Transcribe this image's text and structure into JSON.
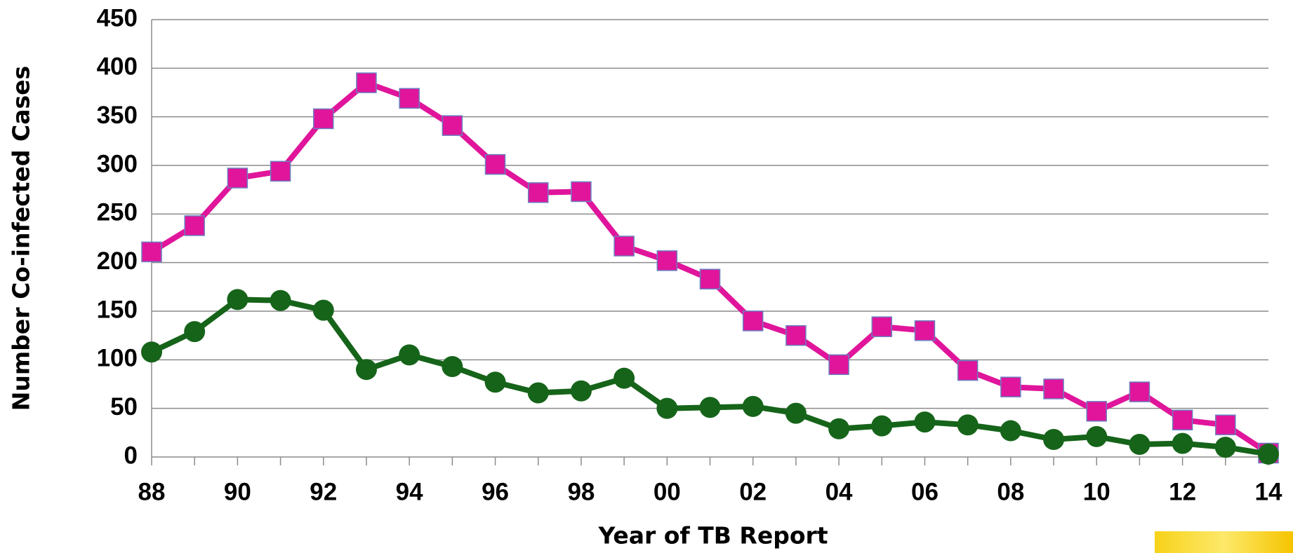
{
  "chart_data": {
    "type": "line",
    "x_label": "Year of TB Report",
    "y_label": "Number Co-infected Cases",
    "categories": [
      "88",
      null,
      "90",
      null,
      "92",
      null,
      "94",
      null,
      "96",
      null,
      "98",
      null,
      "00",
      null,
      "02",
      null,
      "04",
      null,
      "06",
      null,
      "08",
      null,
      "10",
      null,
      "12",
      null,
      "14"
    ],
    "series": [
      {
        "color": "#e0159b",
        "marker": "square",
        "values": [
          211,
          238,
          287,
          294,
          348,
          385,
          369,
          341,
          301,
          272,
          273,
          217,
          202,
          183,
          140,
          125,
          95,
          134,
          130,
          89,
          72,
          70,
          47,
          67,
          38,
          33,
          4
        ]
      },
      {
        "color": "#16641a",
        "marker": "circle",
        "values": [
          108,
          129,
          162,
          161,
          151,
          90,
          105,
          93,
          77,
          66,
          68,
          81,
          50,
          51,
          52,
          45,
          29,
          32,
          36,
          33,
          27,
          18,
          21,
          13,
          14,
          10,
          3
        ]
      }
    ],
    "ylim": [
      0,
      450
    ],
    "yticks": [
      0,
      50,
      100,
      150,
      200,
      250,
      300,
      350,
      400,
      450
    ],
    "grid": true
  }
}
